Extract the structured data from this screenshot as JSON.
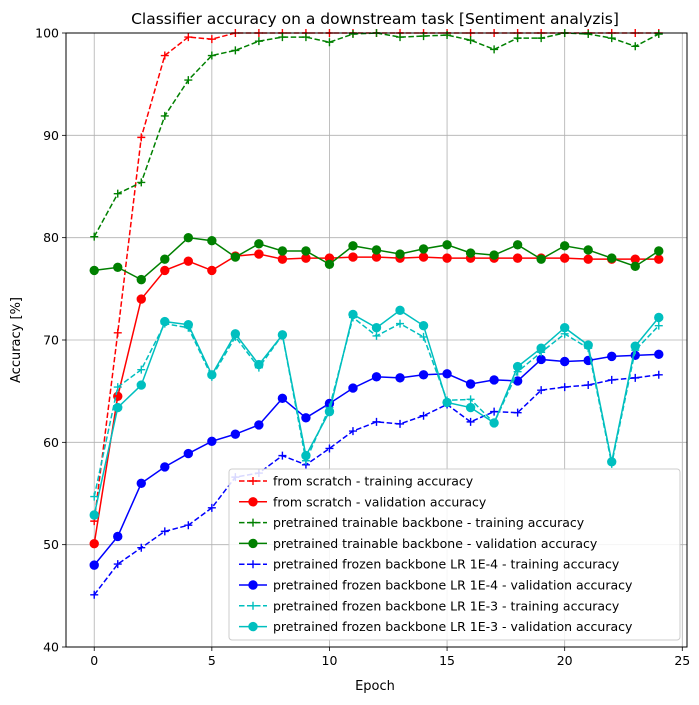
{
  "chart_data": {
    "type": "line",
    "title": "Classifier accuracy on a downstream task [Sentiment analyzis]",
    "xlabel": "Epoch",
    "ylabel": "Accuracy [%]",
    "xlim": [
      -1.2,
      25.2
    ],
    "ylim": [
      40,
      100
    ],
    "xticks": [
      0,
      5,
      10,
      15,
      20,
      25
    ],
    "yticks": [
      40,
      50,
      60,
      70,
      80,
      90,
      100
    ],
    "xtick_labels": [
      "0",
      "5",
      "10",
      "15",
      "20",
      "25"
    ],
    "ytick_labels": [
      "40",
      "50",
      "60",
      "70",
      "80",
      "90",
      "100"
    ],
    "grid": true,
    "legend_position": "lower right",
    "x": [
      0,
      1,
      2,
      3,
      4,
      5,
      6,
      7,
      8,
      9,
      10,
      11,
      12,
      13,
      14,
      15,
      16,
      17,
      18,
      19,
      20,
      21,
      22,
      23,
      24
    ],
    "series": [
      {
        "name": "from scratch - training accuracy",
        "color": "#ff0000",
        "linestyle": "dashed",
        "marker": "plus",
        "values": [
          52.3,
          70.7,
          89.8,
          97.8,
          99.6,
          99.4,
          100,
          100,
          100,
          100,
          100,
          100,
          100,
          100,
          100,
          100,
          100,
          100,
          100,
          100,
          100,
          100,
          100,
          100,
          100
        ]
      },
      {
        "name": "from scratch - validation accuracy",
        "color": "#ff0000",
        "linestyle": "solid",
        "marker": "circle",
        "values": [
          50.1,
          64.5,
          74.0,
          76.8,
          77.7,
          76.8,
          78.2,
          78.4,
          77.9,
          78.0,
          78.0,
          78.1,
          78.1,
          78.0,
          78.1,
          78.0,
          78.0,
          78.0,
          78.0,
          78.0,
          78.0,
          77.9,
          77.9,
          77.9,
          77.9
        ]
      },
      {
        "name": "pretrained trainable backbone - training accuracy",
        "color": "#008000",
        "linestyle": "dashed",
        "marker": "plus",
        "values": [
          80.1,
          84.3,
          85.4,
          91.9,
          95.4,
          97.8,
          98.3,
          99.2,
          99.6,
          99.6,
          99.1,
          99.9,
          100,
          99.6,
          99.7,
          99.8,
          99.3,
          98.4,
          99.5,
          99.5,
          100,
          99.9,
          99.5,
          98.7,
          99.9
        ]
      },
      {
        "name": "pretrained trainable backbone - validation accuracy",
        "color": "#008000",
        "linestyle": "solid",
        "marker": "circle",
        "values": [
          76.8,
          77.1,
          75.9,
          77.9,
          80.0,
          79.7,
          78.1,
          79.4,
          78.7,
          78.7,
          77.4,
          79.2,
          78.8,
          78.4,
          78.9,
          79.3,
          78.5,
          78.3,
          79.3,
          77.9,
          79.2,
          78.8,
          78.0,
          77.2,
          78.7
        ]
      },
      {
        "name": "pretrained frozen backbone LR 1E-4 - training accuracy",
        "color": "#0000ff",
        "linestyle": "dashed",
        "marker": "plus",
        "values": [
          45.1,
          48.1,
          49.7,
          51.3,
          51.9,
          53.6,
          56.6,
          57.0,
          58.7,
          57.8,
          59.4,
          61.1,
          62.0,
          61.8,
          62.6,
          63.7,
          62.0,
          63.0,
          62.9,
          65.1,
          65.4,
          65.6,
          66.1,
          66.3,
          66.6
        ]
      },
      {
        "name": "pretrained frozen backbone LR 1E-4 - validation accuracy",
        "color": "#0000ff",
        "linestyle": "solid",
        "marker": "circle",
        "values": [
          48.0,
          50.8,
          56.0,
          57.6,
          58.9,
          60.1,
          60.8,
          61.7,
          64.3,
          62.4,
          63.8,
          65.3,
          66.4,
          66.3,
          66.6,
          66.7,
          65.7,
          66.1,
          66.0,
          68.1,
          67.9,
          68.0,
          68.4,
          68.5,
          68.6
        ]
      },
      {
        "name": "pretrained frozen backbone LR 1E-3 - training accuracy",
        "color": "#00bfbf",
        "linestyle": "dashed",
        "marker": "plus",
        "values": [
          54.7,
          65.4,
          67.1,
          71.6,
          71.2,
          66.4,
          70.3,
          67.3,
          70.5,
          58.2,
          63.4,
          72.2,
          70.4,
          71.6,
          70.3,
          64.1,
          64.2,
          61.9,
          66.9,
          68.8,
          70.6,
          69.2,
          57.9,
          69.0,
          71.4
        ]
      },
      {
        "name": "pretrained frozen backbone LR 1E-3 - validation accuracy",
        "color": "#00bfbf",
        "linestyle": "solid",
        "marker": "circle",
        "values": [
          52.9,
          63.4,
          65.6,
          71.8,
          71.5,
          66.6,
          70.6,
          67.6,
          70.5,
          58.7,
          63.0,
          72.5,
          71.2,
          72.9,
          71.4,
          63.9,
          63.4,
          61.9,
          67.4,
          69.2,
          71.2,
          69.5,
          58.1,
          69.4,
          72.2
        ]
      }
    ]
  }
}
